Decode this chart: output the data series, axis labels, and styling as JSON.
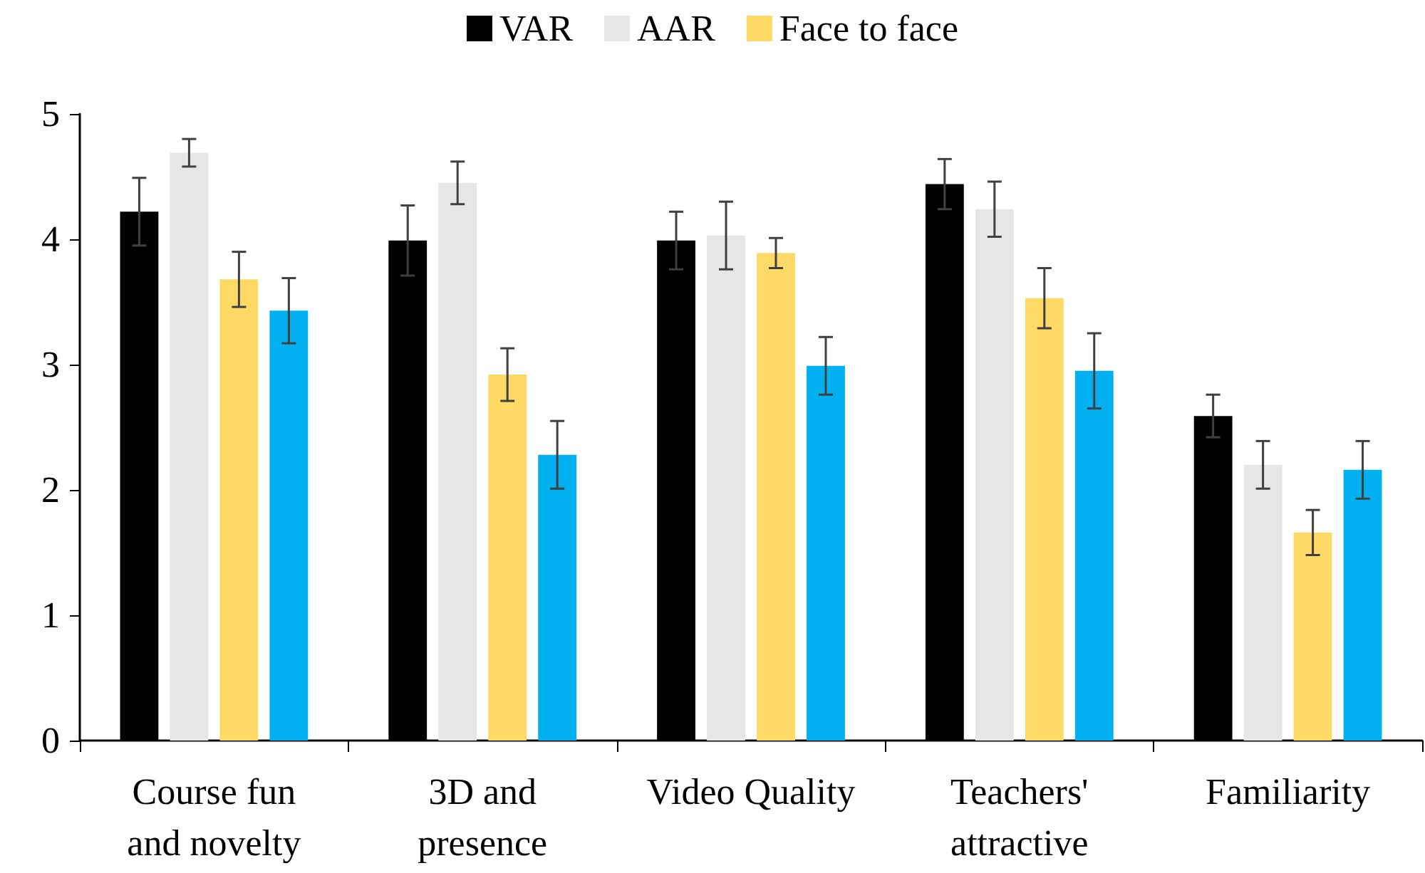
{
  "chart_data": {
    "type": "bar",
    "categories": [
      "Course fun and novelty",
      "3D and presence",
      "Video Quality",
      "Teachers' attractive",
      "Familiarity"
    ],
    "series": [
      {
        "name": "VAR",
        "color": "#000000",
        "values": [
          4.22,
          3.99,
          3.99,
          4.44,
          2.59
        ],
        "errors": [
          0.27,
          0.28,
          0.23,
          0.2,
          0.17
        ]
      },
      {
        "name": "AAR",
        "color": "#e6e6e6",
        "values": [
          4.69,
          4.45,
          4.03,
          4.24,
          2.2
        ],
        "errors": [
          0.11,
          0.17,
          0.27,
          0.22,
          0.19
        ]
      },
      {
        "name": "Face to face",
        "color": "#ffd966",
        "values": [
          3.68,
          2.92,
          3.89,
          3.53,
          1.66
        ],
        "errors": [
          0.22,
          0.21,
          0.12,
          0.24,
          0.18
        ]
      },
      {
        "color": "#00b0f0",
        "values": [
          3.43,
          2.28,
          2.99,
          2.95,
          2.16
        ],
        "errors": [
          0.26,
          0.27,
          0.23,
          0.3,
          0.23
        ]
      }
    ],
    "ylim": [
      0,
      5
    ],
    "yticks": [
      0,
      1,
      2,
      3,
      4,
      5
    ],
    "grid": false,
    "legend": "top"
  }
}
